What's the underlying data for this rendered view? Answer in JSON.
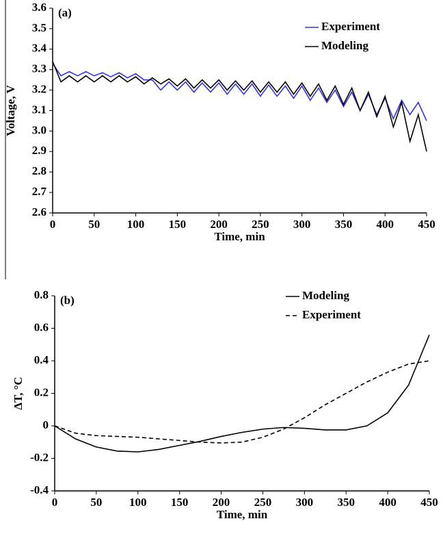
{
  "chart_data": [
    {
      "type": "line",
      "annotation": "(a)",
      "x_label": "Time, min",
      "y_label": "Voltage, V",
      "xlim": [
        0,
        450
      ],
      "xticks": [
        0,
        50,
        100,
        150,
        200,
        250,
        300,
        350,
        400,
        450
      ],
      "ylim": [
        2.6,
        3.6
      ],
      "yticks": [
        {
          "value": 2.6,
          "label": "2.6"
        },
        {
          "value": 2.7,
          "label": "2.7"
        },
        {
          "value": 2.8,
          "label": "2.8"
        },
        {
          "value": 2.9,
          "label": "2.9"
        },
        {
          "value": 3,
          "label": "3.0"
        },
        {
          "value": 3.1,
          "label": "3.1"
        },
        {
          "value": 3.2,
          "label": "3.2"
        },
        {
          "value": 3.3,
          "label": "3.3"
        },
        {
          "value": 3.4,
          "label": "3.4"
        },
        {
          "value": 3.5,
          "label": "3.5"
        },
        {
          "value": 3.6,
          "label": "3.6"
        }
      ],
      "x": [
        0,
        10,
        20,
        30,
        40,
        50,
        60,
        70,
        80,
        90,
        100,
        110,
        120,
        130,
        140,
        150,
        160,
        170,
        180,
        190,
        200,
        210,
        220,
        230,
        240,
        250,
        260,
        270,
        280,
        290,
        300,
        310,
        320,
        330,
        340,
        350,
        360,
        370,
        380,
        390,
        400,
        410,
        420,
        430,
        440,
        450
      ],
      "series": [
        {
          "name": "Experiment",
          "color": "#3333dd",
          "dash": false,
          "values": [
            3.33,
            3.27,
            3.29,
            3.27,
            3.29,
            3.27,
            3.285,
            3.265,
            3.285,
            3.26,
            3.28,
            3.25,
            3.25,
            3.2,
            3.24,
            3.2,
            3.24,
            3.19,
            3.235,
            3.19,
            3.235,
            3.18,
            3.23,
            3.18,
            3.23,
            3.17,
            3.225,
            3.17,
            3.22,
            3.16,
            3.22,
            3.15,
            3.21,
            3.14,
            3.2,
            3.12,
            3.19,
            3.1,
            3.18,
            3.08,
            3.16,
            3.06,
            3.15,
            3.08,
            3.14,
            3.05
          ]
        },
        {
          "name": "Modeling",
          "color": "#000000",
          "dash": false,
          "values": [
            3.34,
            3.24,
            3.27,
            3.24,
            3.27,
            3.24,
            3.27,
            3.24,
            3.27,
            3.24,
            3.265,
            3.23,
            3.26,
            3.23,
            3.255,
            3.22,
            3.255,
            3.21,
            3.25,
            3.21,
            3.25,
            3.2,
            3.245,
            3.2,
            3.245,
            3.19,
            3.24,
            3.19,
            3.24,
            3.18,
            3.235,
            3.17,
            3.23,
            3.15,
            3.22,
            3.13,
            3.21,
            3.1,
            3.19,
            3.07,
            3.17,
            3.02,
            3.14,
            2.95,
            3.08,
            2.9
          ]
        }
      ]
    },
    {
      "type": "line",
      "annotation": "(b)",
      "x_label": "Time, min",
      "y_label": "ΔT, °C",
      "xlim": [
        0,
        450
      ],
      "xticks": [
        0,
        50,
        100,
        150,
        200,
        250,
        300,
        350,
        400,
        450
      ],
      "ylim": [
        -0.4,
        0.8
      ],
      "yticks": [
        -0.4,
        -0.2,
        0,
        0.2,
        0.4,
        0.6,
        0.8
      ],
      "x": [
        0,
        25,
        50,
        75,
        100,
        125,
        150,
        175,
        200,
        225,
        250,
        275,
        300,
        325,
        350,
        375,
        400,
        425,
        450
      ],
      "series": [
        {
          "name": "Modeling",
          "color": "#000000",
          "dash": false,
          "values": [
            0,
            -0.08,
            -0.13,
            -0.155,
            -0.16,
            -0.145,
            -0.12,
            -0.095,
            -0.065,
            -0.04,
            -0.02,
            -0.01,
            -0.015,
            -0.025,
            -0.025,
            0,
            0.08,
            0.25,
            0.56
          ]
        },
        {
          "name": "Experiment",
          "color": "#000000",
          "dash": true,
          "values": [
            0,
            -0.045,
            -0.06,
            -0.065,
            -0.07,
            -0.08,
            -0.09,
            -0.1,
            -0.105,
            -0.1,
            -0.07,
            -0.02,
            0.05,
            0.13,
            0.2,
            0.27,
            0.33,
            0.38,
            0.4
          ]
        }
      ]
    }
  ]
}
